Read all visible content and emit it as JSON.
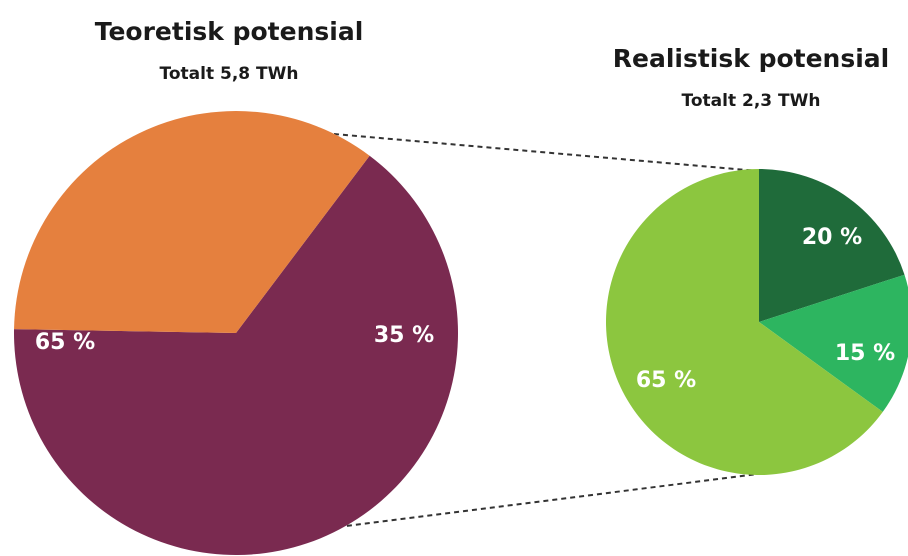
{
  "chart_data": [
    {
      "type": "pie",
      "title": "Teoretisk potensial",
      "subtitle": "Totalt 5,8 TWh",
      "slices": [
        {
          "label": "65 %",
          "value": 65,
          "color": "#7a2a50"
        },
        {
          "label": "35 %",
          "value": 35,
          "color": "#e5803e"
        }
      ]
    },
    {
      "type": "pie",
      "title": "Realistisk potensial",
      "subtitle": "Totalt 2,3 TWh",
      "slices": [
        {
          "label": "20 %",
          "value": 20,
          "color": "#1f6b3a"
        },
        {
          "label": "15 %",
          "value": 15,
          "color": "#2db560"
        },
        {
          "label": "65 %",
          "value": 65,
          "color": "#8cc63f"
        }
      ]
    }
  ]
}
